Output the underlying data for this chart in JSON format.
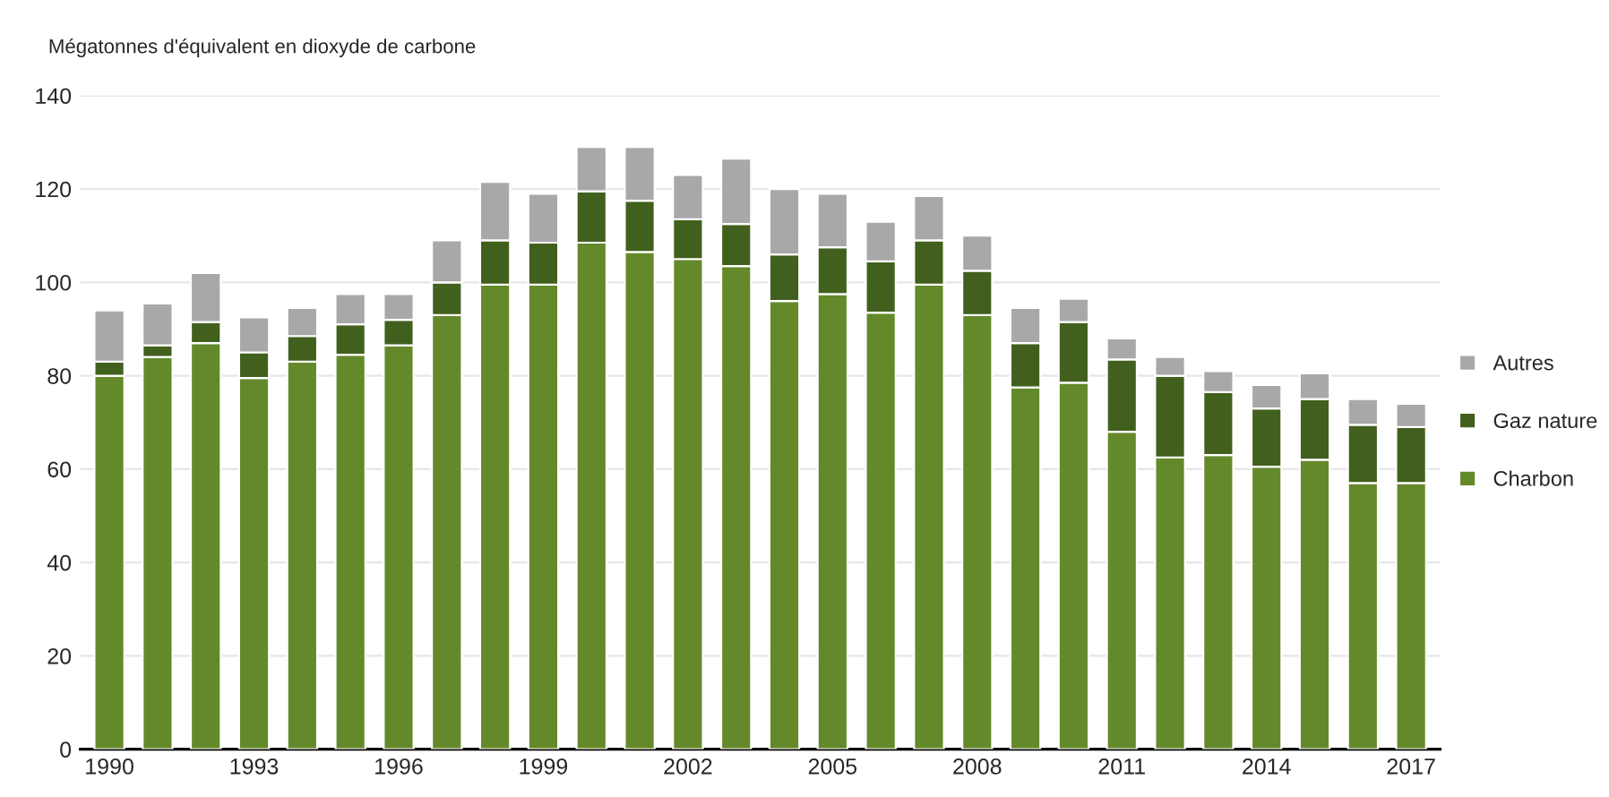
{
  "chart_data": {
    "type": "bar",
    "stacked": true,
    "ylabel": "Mégatonnes d'équivalent en dioxyde de carbone",
    "categories": [
      "1990",
      null,
      null,
      "1993",
      null,
      null,
      "1996",
      null,
      null,
      "1999",
      null,
      null,
      "2002",
      null,
      null,
      "2005",
      null,
      null,
      "2008",
      null,
      null,
      "2011",
      null,
      null,
      "2014",
      null,
      null,
      "2017"
    ],
    "series": [
      {
        "name": "Charbon",
        "color": "#64892b",
        "values": [
          80,
          84,
          87,
          79.5,
          83,
          84.5,
          86.5,
          93,
          99.5,
          99.5,
          108.5,
          106.5,
          105,
          103.5,
          96,
          97.5,
          93.5,
          99.5,
          93,
          77.5,
          78.5,
          68,
          62.5,
          63,
          60.5,
          62,
          57,
          57
        ]
      },
      {
        "name": "Gaz nature",
        "color": "#41601d",
        "values": [
          3,
          2.5,
          4.5,
          5.5,
          5.5,
          6.5,
          5.5,
          7,
          9.5,
          9,
          11,
          11,
          8.5,
          9,
          10,
          10,
          11,
          9.5,
          9.5,
          9.5,
          13,
          15.5,
          17.5,
          13.5,
          12.5,
          13,
          12.5,
          12
        ]
      },
      {
        "name": "Autres",
        "color": "#a8a8a8",
        "values": [
          11,
          9,
          10.5,
          7.5,
          6,
          6.5,
          5.5,
          9,
          12.5,
          10.5,
          9.5,
          11.5,
          9.5,
          14,
          14,
          11.5,
          8.5,
          9.5,
          7.5,
          7.5,
          5,
          4.5,
          4,
          4.5,
          5,
          5.5,
          5.5,
          5
        ]
      }
    ],
    "ylim": [
      0,
      140
    ],
    "yticks": [
      0,
      20,
      40,
      60,
      80,
      100,
      120,
      140
    ],
    "grid": "y",
    "legend": "right"
  }
}
